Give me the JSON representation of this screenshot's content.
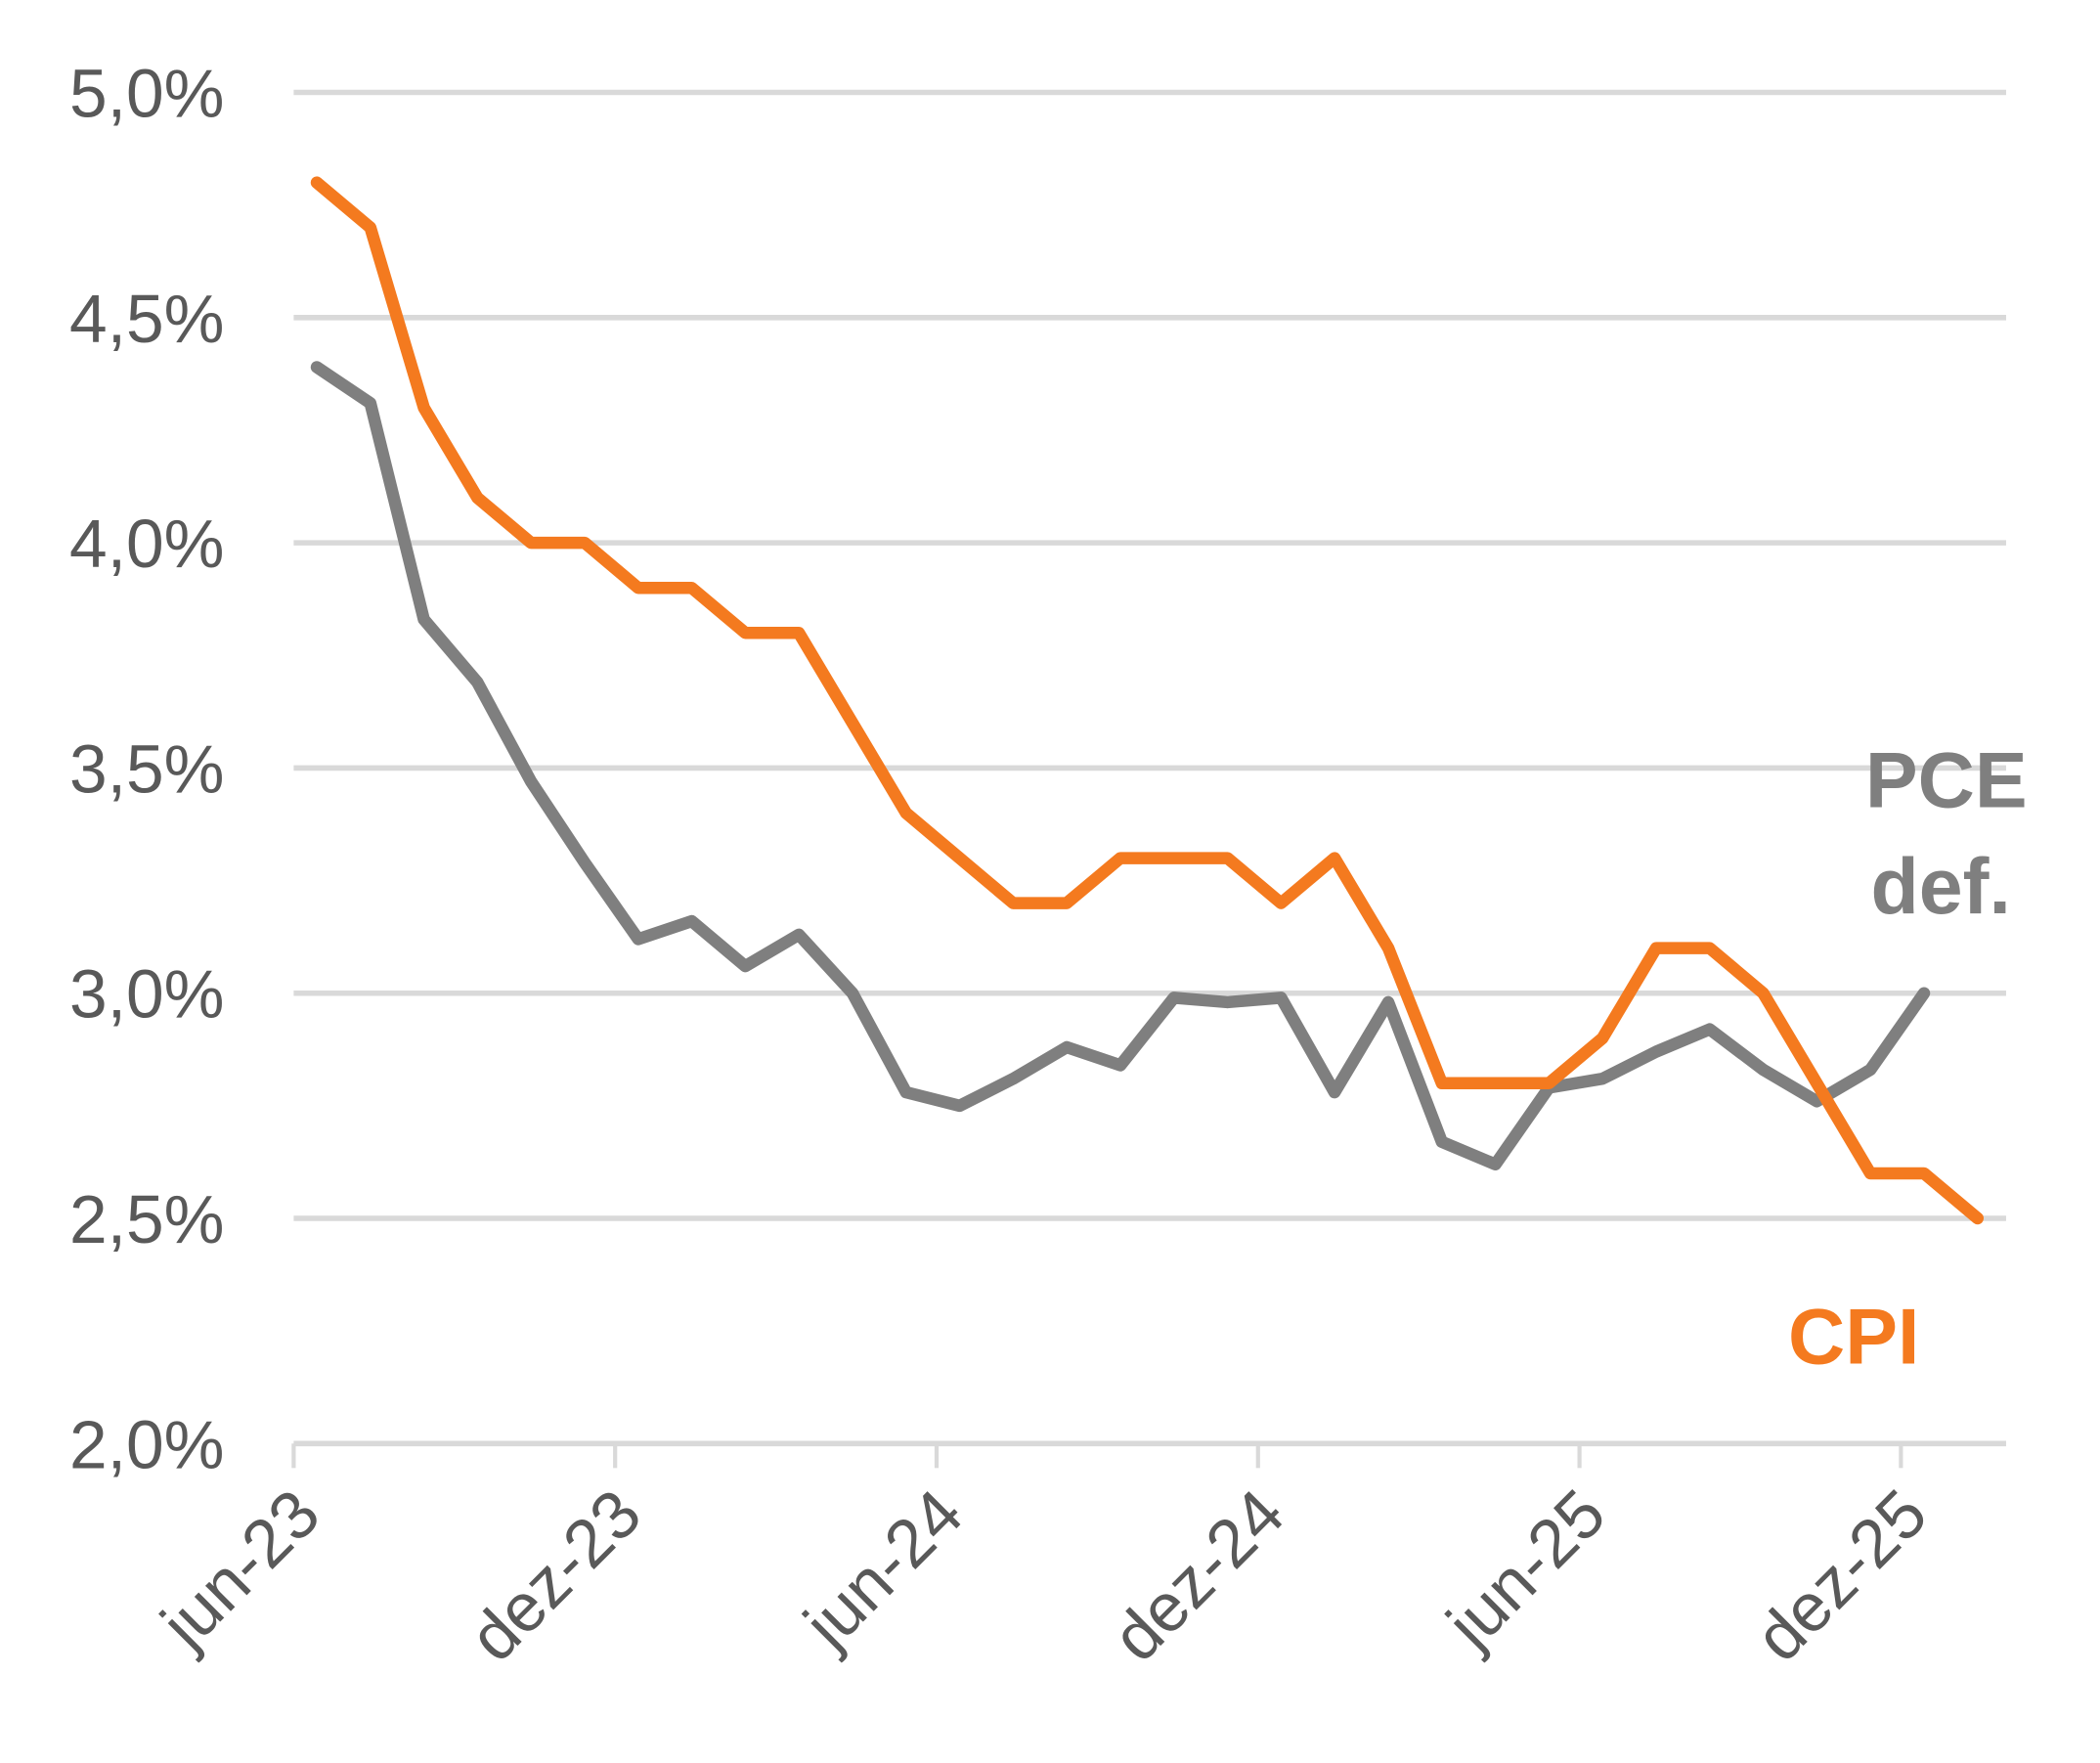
{
  "chart_data": {
    "type": "line",
    "title": "",
    "xlabel": "",
    "ylabel": "",
    "ylim": [
      2.0,
      5.0
    ],
    "yticks": [
      "2,0%",
      "2,5%",
      "3,0%",
      "3,5%",
      "4,0%",
      "4,5%",
      "5,0%"
    ],
    "ytick_values": [
      2.0,
      2.5,
      3.0,
      3.5,
      4.0,
      4.5,
      5.0
    ],
    "xtick_labels": [
      "jun-23",
      "dez-23",
      "jun-24",
      "dez-24",
      "jun-25",
      "dez-25"
    ],
    "xtick_month_index": [
      0,
      6,
      12,
      18,
      24,
      30
    ],
    "grid": true,
    "x_start": "jun-23",
    "series": [
      {
        "name": "CPI",
        "label_lines": [
          "CPI"
        ],
        "color": "#F47A1F",
        "values": [
          4.8,
          4.7,
          4.3,
          4.1,
          4.0,
          4.0,
          3.9,
          3.9,
          3.8,
          3.8,
          3.6,
          3.4,
          3.3,
          3.2,
          3.2,
          3.3,
          3.3,
          3.3,
          3.2,
          3.3,
          3.1,
          2.8,
          2.8,
          2.8,
          2.9,
          3.1,
          3.1,
          3.0,
          2.8,
          2.6,
          2.6,
          2.5
        ]
      },
      {
        "name": "PCE def.",
        "label_lines": [
          "PCE",
          "def."
        ],
        "color": "#7F7F7F",
        "values": [
          4.39,
          4.31,
          3.83,
          3.69,
          3.47,
          3.29,
          3.12,
          3.16,
          3.06,
          3.13,
          3.0,
          2.78,
          2.75,
          2.81,
          2.88,
          2.84,
          2.99,
          2.98,
          2.99,
          2.78,
          2.98,
          2.67,
          2.62,
          2.79,
          2.81,
          2.87,
          2.92,
          2.83,
          2.76,
          2.83,
          3.0
        ]
      }
    ]
  }
}
